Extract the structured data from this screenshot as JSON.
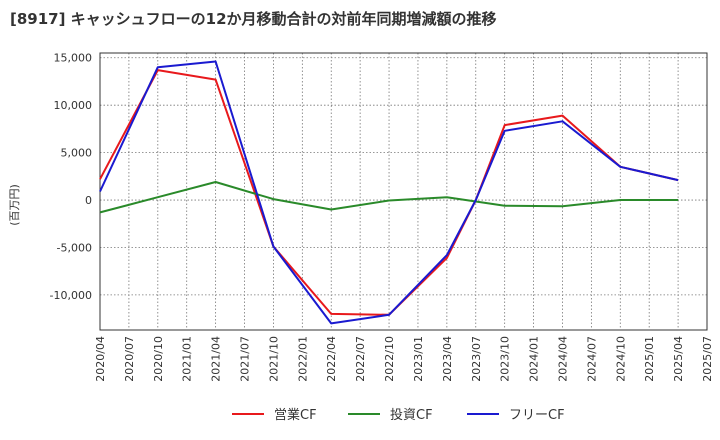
{
  "chart_data": {
    "type": "line",
    "title": "[8917]  キャッシュフローの12か月移動合計の対前年同期増減額の推移",
    "ylabel": "(百万円)",
    "xlabel": "",
    "ylim": [
      -13700,
      15500
    ],
    "yticks": [
      15000,
      10000,
      5000,
      0,
      -5000,
      -10000
    ],
    "ytick_labels": [
      "15,000",
      "10,000",
      "5,000",
      "0",
      "-5,000",
      "-10,000"
    ],
    "x_ticks": [
      "2020/04",
      "2020/07",
      "2020/10",
      "2021/01",
      "2021/04",
      "2021/07",
      "2021/10",
      "2022/01",
      "2022/04",
      "2022/07",
      "2022/10",
      "2023/01",
      "2023/04",
      "2023/07",
      "2023/10",
      "2024/01",
      "2024/04",
      "2024/07",
      "2024/10",
      "2025/01",
      "2025/04",
      "2025/07"
    ],
    "grid": true,
    "legend_position": "bottom-center",
    "series": [
      {
        "name": "営業CF",
        "color": "#e8191c",
        "x": [
          "2020/04",
          "2020/10",
          "2021/04",
          "2021/10",
          "2022/04",
          "2022/10",
          "2023/04",
          "2023/07",
          "2023/10",
          "2024/04",
          "2024/10",
          "2025/04"
        ],
        "values": [
          2200,
          13700,
          12700,
          -4900,
          -12000,
          -12100,
          -6100,
          0,
          7900,
          8900,
          3500,
          2100
        ]
      },
      {
        "name": "投資CF",
        "color": "#2a8a2a",
        "x": [
          "2020/04",
          "2020/10",
          "2021/04",
          "2021/10",
          "2022/04",
          "2022/10",
          "2023/04",
          "2023/10",
          "2024/04",
          "2024/10",
          "2025/04"
        ],
        "values": [
          -1300,
          300,
          1900,
          100,
          -1000,
          -50,
          300,
          -600,
          -650,
          0,
          0
        ]
      },
      {
        "name": "フリーCF",
        "color": "#1a1ad0",
        "x": [
          "2020/04",
          "2020/10",
          "2021/04",
          "2021/10",
          "2022/04",
          "2022/10",
          "2023/04",
          "2023/07",
          "2023/10",
          "2024/04",
          "2024/10",
          "2025/04"
        ],
        "values": [
          900,
          14000,
          14600,
          -4900,
          -13000,
          -12100,
          -5800,
          0,
          7300,
          8300,
          3500,
          2100
        ]
      }
    ]
  }
}
